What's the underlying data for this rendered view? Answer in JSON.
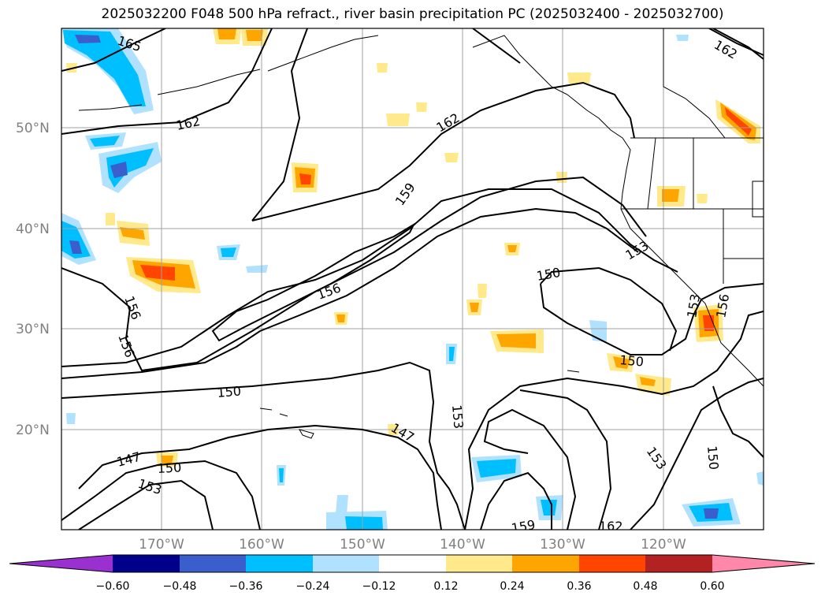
{
  "title": "2025032200 F048 500 hPa refract., river basin precipitation PC (2025032400 - 2025032700)",
  "lat_labels": [
    "50°N",
    "40°N",
    "30°N",
    "20°N"
  ],
  "lon_labels": [
    "170°W",
    "160°W",
    "150°W",
    "140°W",
    "130°W",
    "120°W"
  ],
  "contour_labels": [
    "165",
    "162",
    "162",
    "162",
    "159",
    "156",
    "156",
    "156",
    "156",
    "153",
    "153",
    "153",
    "153",
    "153",
    "150",
    "150",
    "150",
    "150",
    "150",
    "147",
    "147",
    "159",
    "162"
  ],
  "colorbar": {
    "ticks": [
      "−0.60",
      "−0.48",
      "−0.36",
      "−0.24",
      "−0.12",
      "0.12",
      "0.24",
      "0.36",
      "0.48",
      "0.60"
    ],
    "colors": [
      "#9b30d0",
      "#00008b",
      "#3a5fcd",
      "#00bfff",
      "#b0e2ff",
      "#ffffff",
      "#ffe98a",
      "#ffa500",
      "#ff4500",
      "#b22222",
      "#ff88aa"
    ]
  }
}
